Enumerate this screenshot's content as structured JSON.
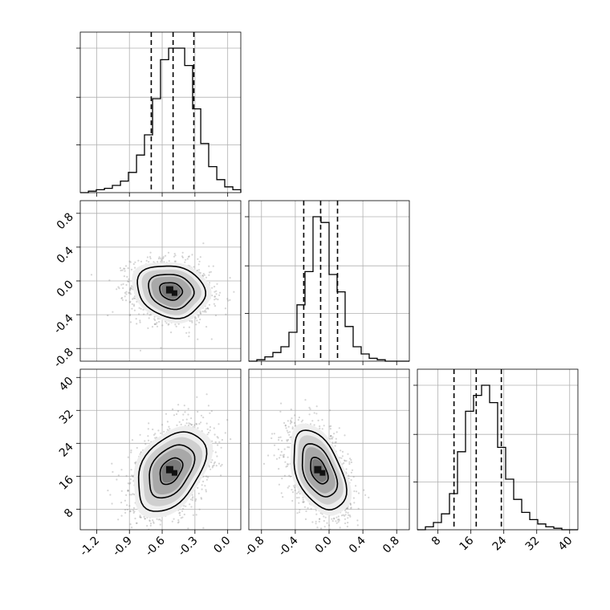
{
  "chart_data": {
    "type": "corner",
    "title": "",
    "parameters": [
      {
        "label": "",
        "range": [
          -1.35,
          0.12
        ],
        "ticks": [
          "-1.2",
          "-0.9",
          "-0.6",
          "-0.3",
          "0.0"
        ],
        "tick_values": [
          -1.2,
          -0.9,
          -0.6,
          -0.3,
          0.0
        ]
      },
      {
        "label": "",
        "range": [
          -0.95,
          0.95
        ],
        "ticks": [
          "-0.8",
          "-0.4",
          "0.0",
          "0.4",
          "0.8"
        ],
        "tick_values": [
          -0.8,
          -0.4,
          0.0,
          0.4,
          0.8
        ]
      },
      {
        "label": "",
        "range": [
          3,
          42
        ],
        "ticks": [
          "8",
          "16",
          "24",
          "32",
          "40"
        ],
        "tick_values": [
          8,
          16,
          24,
          32,
          40
        ]
      }
    ],
    "histograms": [
      {
        "parameter": 0,
        "bin_edges": [
          -1.35,
          -1.276,
          -1.203,
          -1.129,
          -1.056,
          -0.982,
          -0.909,
          -0.835,
          -0.762,
          -0.688,
          -0.615,
          -0.541,
          -0.468,
          -0.394,
          -0.321,
          -0.247,
          -0.174,
          -0.1,
          -0.027,
          0.047,
          0.12
        ],
        "counts": [
          0,
          1,
          2,
          3,
          5,
          8,
          14,
          26,
          40,
          65,
          92,
          100,
          100,
          88,
          58,
          34,
          18,
          9,
          4,
          2
        ],
        "quantiles": [
          -0.7,
          -0.5,
          -0.31
        ]
      },
      {
        "parameter": 1,
        "bin_edges": [
          -0.95,
          -0.855,
          -0.76,
          -0.665,
          -0.57,
          -0.475,
          -0.38,
          -0.285,
          -0.19,
          -0.095,
          0.0,
          0.095,
          0.19,
          0.285,
          0.38,
          0.475,
          0.57,
          0.665,
          0.76,
          0.855,
          0.95
        ],
        "counts": [
          0,
          1,
          3,
          6,
          10,
          20,
          39,
          62,
          100,
          96,
          60,
          48,
          24,
          10,
          5,
          2,
          1,
          0,
          0,
          0
        ],
        "quantiles": [
          -0.3,
          -0.1,
          0.1
        ]
      },
      {
        "parameter": 2,
        "bin_edges": [
          3.0,
          4.95,
          6.9,
          8.85,
          10.8,
          12.75,
          14.7,
          16.65,
          18.6,
          20.55,
          22.5,
          24.45,
          26.4,
          28.35,
          30.3,
          32.25,
          34.2,
          36.15,
          38.1,
          40.05,
          42.0
        ],
        "counts": [
          0,
          2,
          5,
          11,
          25,
          54,
          82,
          93,
          100,
          88,
          57,
          35,
          21,
          12,
          7,
          4,
          2,
          1,
          0,
          0
        ],
        "quantiles": [
          11.9,
          17.3,
          23.4
        ]
      }
    ],
    "contours_2d": [
      {
        "x_param": 0,
        "y_param": 1,
        "center": [
          -0.52,
          -0.12
        ],
        "sigma": [
          0.18,
          0.18
        ],
        "correlation": -0.15,
        "levels": [
          0.5,
          1.0,
          1.5,
          2.0
        ]
      },
      {
        "x_param": 0,
        "y_param": 2,
        "center": [
          -0.52,
          17.3
        ],
        "sigma": [
          0.18,
          5.6
        ],
        "correlation": 0.4,
        "levels": [
          0.5,
          1.0,
          1.5,
          2.0
        ]
      },
      {
        "x_param": 1,
        "y_param": 2,
        "center": [
          -0.12,
          17.3
        ],
        "sigma": [
          0.18,
          5.6
        ],
        "correlation": -0.45,
        "levels": [
          0.5,
          1.0,
          1.5,
          2.0
        ]
      }
    ],
    "grid": true
  }
}
